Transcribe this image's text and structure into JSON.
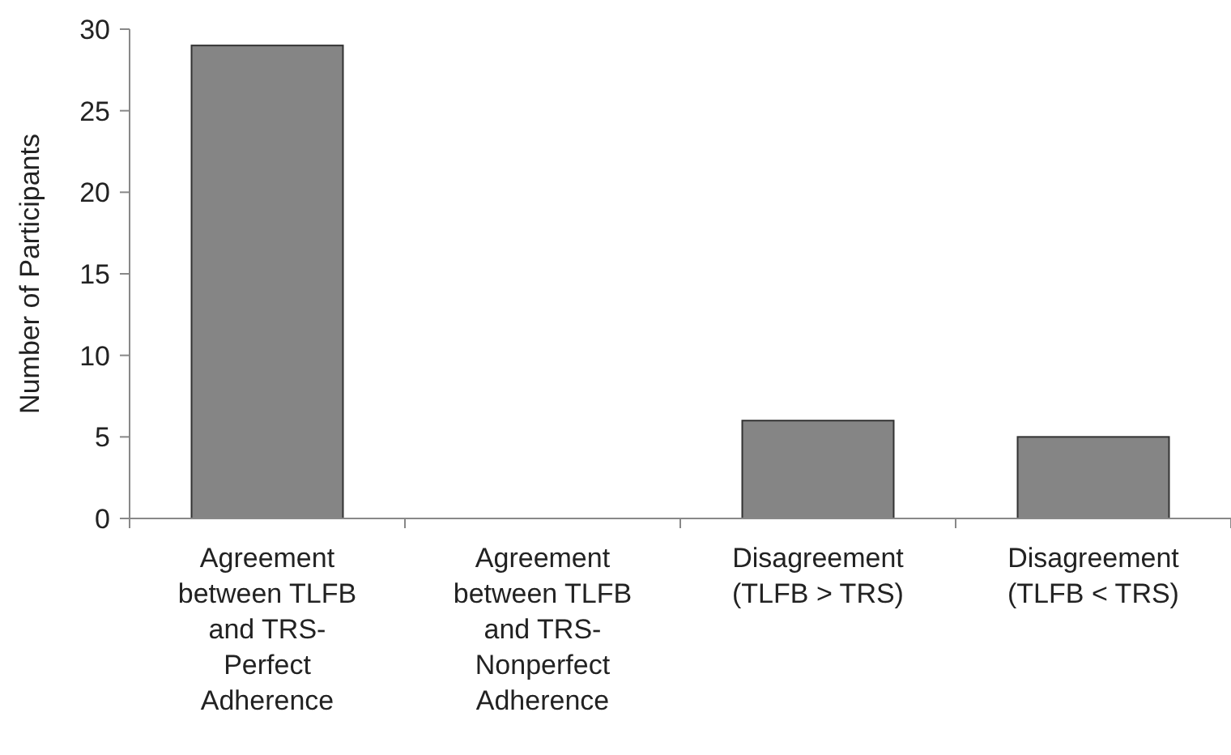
{
  "chart_data": {
    "type": "bar",
    "ylabel": "Number of Participants",
    "categories": [
      "Agreement between TLFB and TRS-Perfect Adherence",
      "Agreement between TLFB and TRS-Nonperfect Adherence",
      "Disagreement (TLFB > TRS)",
      "Disagreement (TLFB < TRS)"
    ],
    "values": [
      29,
      0,
      6,
      5
    ],
    "color": "#858585",
    "ylim": [
      0,
      30
    ],
    "yticks": [
      0,
      5,
      10,
      15,
      20,
      25,
      30
    ],
    "grid": false
  }
}
